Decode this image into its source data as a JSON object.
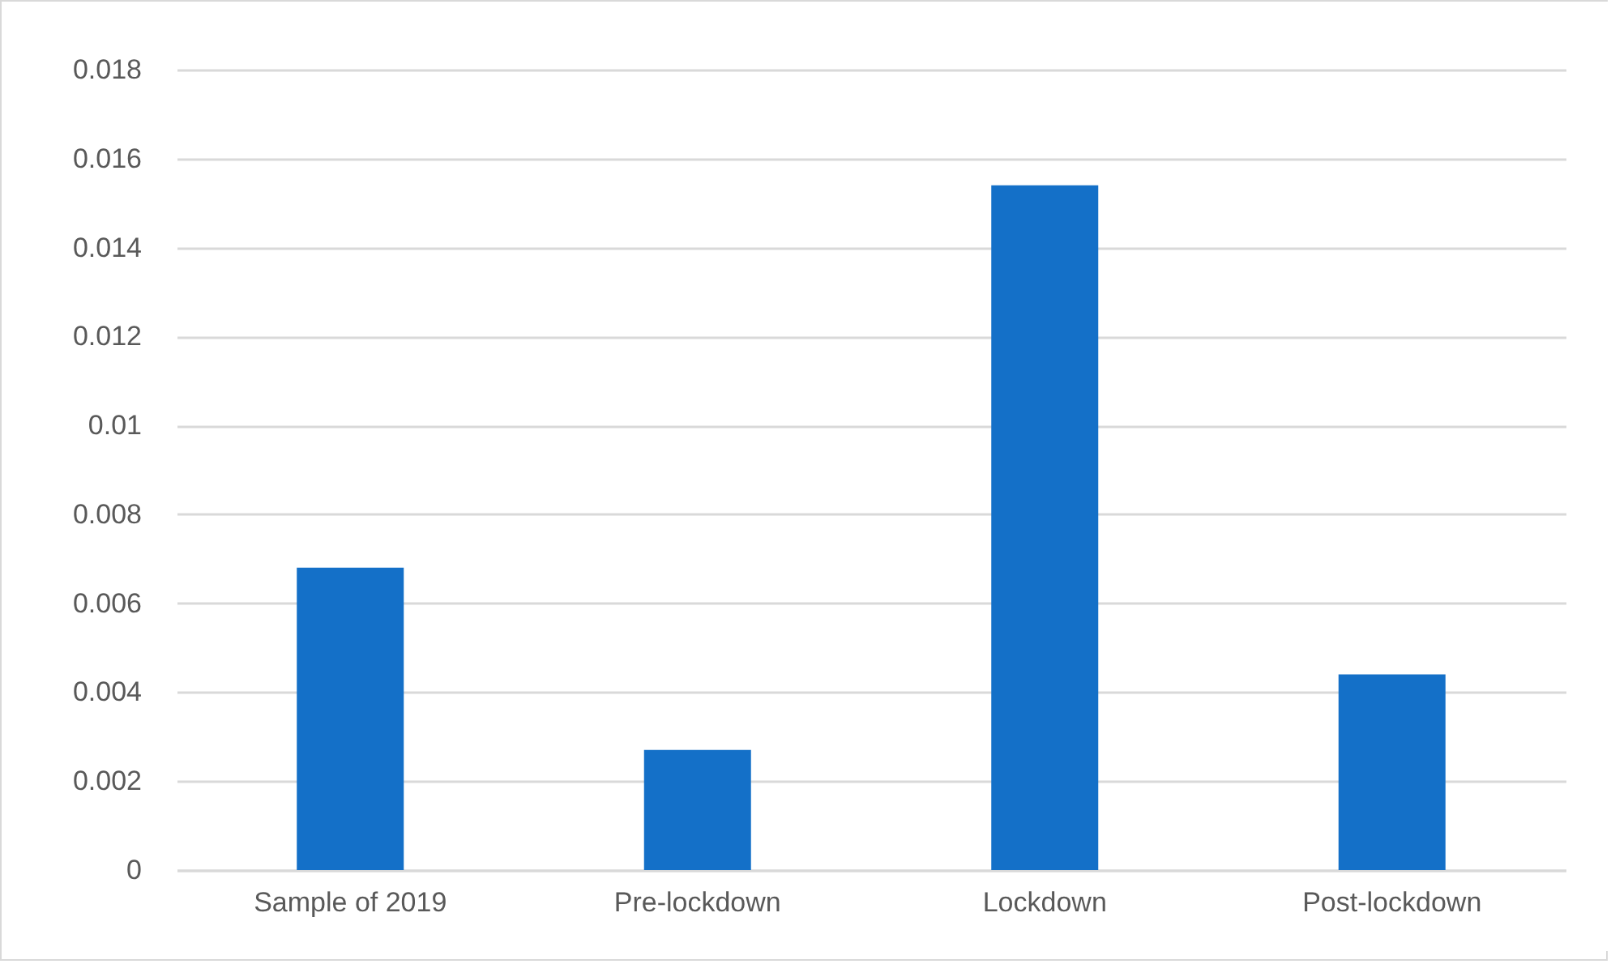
{
  "chart_data": {
    "type": "bar",
    "categories": [
      "Sample of 2019",
      "Pre-lockdown",
      "Lockdown",
      "Post-lockdown"
    ],
    "values": [
      0.0068,
      0.0027,
      0.0154,
      0.0044
    ],
    "color": "#1470c8",
    "ylim": [
      0,
      0.018
    ],
    "yticks": [
      0,
      0.002,
      0.004,
      0.006,
      0.008,
      0.01,
      0.012,
      0.014,
      0.016,
      0.018
    ],
    "grid": "y"
  }
}
